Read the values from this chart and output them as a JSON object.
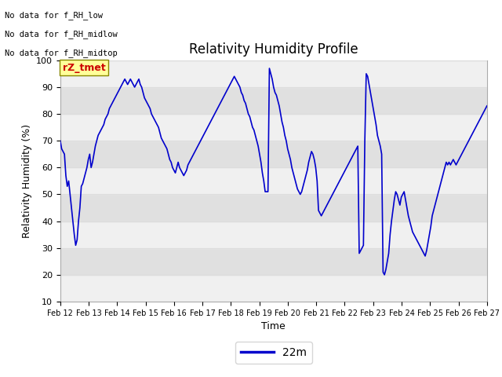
{
  "title": "Relativity Humidity Profile",
  "xlabel": "Time",
  "ylabel": "Relativity Humidity (%)",
  "ylim": [
    10,
    100
  ],
  "yticks": [
    10,
    20,
    30,
    40,
    50,
    60,
    70,
    80,
    90,
    100
  ],
  "xtick_labels": [
    "Feb 12",
    "Feb 13",
    "Feb 14",
    "Feb 15",
    "Feb 16",
    "Feb 17",
    "Feb 18",
    "Feb 19",
    "Feb 20",
    "Feb 21",
    "Feb 22",
    "Feb 23",
    "Feb 24",
    "Feb 25",
    "Feb 26",
    "Feb 27"
  ],
  "line_color": "#0000cc",
  "line_label": "22m",
  "annotations": [
    "No data for f_RH_low",
    "No data for f_RH_midlow",
    "No data for f_RH_midtop"
  ],
  "annotation_color": "#000000",
  "tZ_tmet_label": "rZ_tmet",
  "tZ_tmet_color": "#cc0000",
  "tZ_tmet_bg": "#ffff99",
  "tZ_tmet_border": "#888800",
  "grid_color": "#dddddd",
  "band_light": "#f0f0f0",
  "band_dark": "#e0e0e0",
  "fig_bg": "#ffffff",
  "plot_bg": "#e8e8e8",
  "y_values": [
    70,
    67,
    66,
    65,
    57,
    53,
    55,
    50,
    45,
    40,
    35,
    31,
    33,
    40,
    45,
    53,
    54,
    56,
    58,
    60,
    63,
    65,
    60,
    62,
    65,
    68,
    70,
    72,
    73,
    74,
    75,
    76,
    78,
    79,
    80,
    82,
    83,
    84,
    85,
    86,
    87,
    88,
    89,
    90,
    91,
    92,
    93,
    92,
    91,
    92,
    93,
    92,
    91,
    90,
    91,
    92,
    93,
    91,
    90,
    88,
    86,
    85,
    84,
    83,
    82,
    80,
    79,
    78,
    77,
    76,
    75,
    73,
    71,
    70,
    69,
    68,
    67,
    65,
    63,
    62,
    60,
    59,
    58,
    60,
    62,
    60,
    59,
    58,
    57,
    58,
    59,
    61,
    62,
    63,
    64,
    65,
    66,
    67,
    68,
    69,
    70,
    71,
    72,
    73,
    74,
    75,
    76,
    77,
    78,
    79,
    80,
    81,
    82,
    83,
    84,
    85,
    86,
    87,
    88,
    89,
    90,
    91,
    92,
    93,
    94,
    93,
    92,
    91,
    90,
    88,
    87,
    85,
    84,
    82,
    80,
    79,
    77,
    75,
    74,
    72,
    70,
    68,
    65,
    62,
    58,
    55,
    51,
    51,
    51,
    97,
    95,
    93,
    90,
    88,
    87,
    85,
    83,
    80,
    77,
    75,
    72,
    70,
    67,
    65,
    63,
    60,
    58,
    56,
    54,
    52,
    51,
    50,
    51,
    53,
    55,
    57,
    59,
    62,
    64,
    66,
    65,
    63,
    60,
    55,
    44,
    43,
    42,
    43,
    44,
    45,
    46,
    47,
    48,
    49,
    50,
    51,
    52,
    53,
    54,
    55,
    56,
    57,
    58,
    59,
    60,
    61,
    62,
    63,
    64,
    65,
    66,
    67,
    68,
    28,
    29,
    30,
    31,
    70,
    95,
    94,
    91,
    88,
    85,
    82,
    79,
    76,
    72,
    70,
    68,
    65,
    21,
    20,
    22,
    25,
    28,
    35,
    40,
    44,
    48,
    51,
    50,
    48,
    46,
    49,
    50,
    51,
    48,
    45,
    42,
    40,
    38,
    36,
    35,
    34,
    33,
    32,
    31,
    30,
    29,
    28,
    27,
    29,
    32,
    35,
    38,
    42,
    44,
    46,
    48,
    50,
    52,
    54,
    56,
    58,
    60,
    62,
    61,
    62,
    61,
    62,
    63,
    62,
    61,
    62,
    63,
    64,
    65,
    66,
    67,
    68,
    69,
    70,
    71,
    72,
    73,
    74,
    75,
    76,
    77,
    78,
    79,
    80,
    81,
    82,
    83
  ]
}
